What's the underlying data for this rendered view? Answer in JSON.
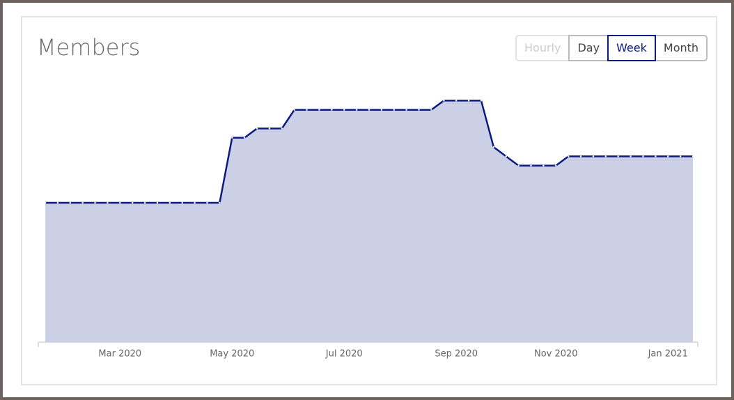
{
  "chart_data": {
    "type": "area",
    "title": "Members",
    "categories": [
      null,
      null,
      null,
      null,
      null,
      null,
      "Mar 2020",
      null,
      null,
      null,
      null,
      null,
      null,
      null,
      null,
      "May 2020",
      null,
      null,
      null,
      null,
      null,
      null,
      null,
      null,
      "Jul 2020",
      null,
      null,
      null,
      null,
      null,
      null,
      null,
      null,
      "Sep 2020",
      null,
      null,
      null,
      null,
      null,
      null,
      null,
      "Nov 2020",
      null,
      null,
      null,
      null,
      null,
      null,
      null,
      null,
      "Jan 2021",
      null,
      null
    ],
    "values": [
      15,
      15,
      15,
      15,
      15,
      15,
      15,
      15,
      15,
      15,
      15,
      15,
      15,
      15,
      15,
      22,
      22,
      23,
      23,
      23,
      25,
      25,
      25,
      25,
      25,
      25,
      25,
      25,
      25,
      25,
      25,
      25,
      26,
      26,
      26,
      26,
      21,
      20,
      19,
      19,
      19,
      19,
      20,
      20,
      20,
      20,
      20,
      20,
      20,
      20,
      20,
      20,
      20
    ],
    "color": "#0a1a80",
    "fill": "#cbd0e6",
    "ylim": [
      0,
      30
    ]
  },
  "controls": {
    "buttons": [
      "Hourly",
      "Day",
      "Week",
      "Month"
    ],
    "selected": 2,
    "disabled": 0
  }
}
